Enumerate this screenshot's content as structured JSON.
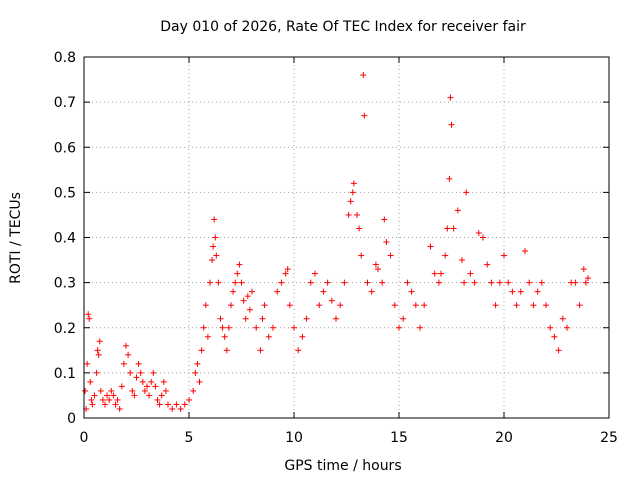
{
  "chart_data": {
    "type": "scatter",
    "title": "Day 010 of 2026, Rate Of TEC Index for receiver fair",
    "xlabel": "GPS time / hours",
    "ylabel": "ROTI / TECUs",
    "xlim": [
      0,
      25
    ],
    "ylim": [
      0,
      0.8
    ],
    "xticks": [
      "0",
      "5",
      "10",
      "15",
      "20",
      "25"
    ],
    "yticks": [
      "0",
      "0.1",
      "0.2",
      "0.3",
      "0.4",
      "0.5",
      "0.6",
      "0.7",
      "0.8"
    ],
    "grid": true,
    "marker": "+",
    "color": "#ff0000",
    "series": [
      {
        "name": "",
        "points": [
          [
            0.05,
            0.06
          ],
          [
            0.1,
            0.02
          ],
          [
            0.15,
            0.12
          ],
          [
            0.2,
            0.23
          ],
          [
            0.25,
            0.22
          ],
          [
            0.3,
            0.08
          ],
          [
            0.35,
            0.04
          ],
          [
            0.4,
            0.03
          ],
          [
            0.5,
            0.05
          ],
          [
            0.6,
            0.1
          ],
          [
            0.65,
            0.15
          ],
          [
            0.7,
            0.14
          ],
          [
            0.75,
            0.17
          ],
          [
            0.8,
            0.06
          ],
          [
            0.9,
            0.04
          ],
          [
            1.0,
            0.03
          ],
          [
            1.1,
            0.05
          ],
          [
            1.2,
            0.04
          ],
          [
            1.3,
            0.06
          ],
          [
            1.4,
            0.05
          ],
          [
            1.5,
            0.03
          ],
          [
            1.6,
            0.04
          ],
          [
            1.7,
            0.02
          ],
          [
            1.8,
            0.07
          ],
          [
            1.9,
            0.12
          ],
          [
            2.0,
            0.16
          ],
          [
            2.1,
            0.14
          ],
          [
            2.2,
            0.1
          ],
          [
            2.3,
            0.06
          ],
          [
            2.4,
            0.05
          ],
          [
            2.5,
            0.09
          ],
          [
            2.6,
            0.12
          ],
          [
            2.7,
            0.1
          ],
          [
            2.8,
            0.08
          ],
          [
            2.9,
            0.06
          ],
          [
            3.0,
            0.07
          ],
          [
            3.1,
            0.05
          ],
          [
            3.2,
            0.08
          ],
          [
            3.3,
            0.1
          ],
          [
            3.4,
            0.07
          ],
          [
            3.5,
            0.04
          ],
          [
            3.6,
            0.03
          ],
          [
            3.7,
            0.05
          ],
          [
            3.8,
            0.08
          ],
          [
            3.9,
            0.06
          ],
          [
            4.0,
            0.03
          ],
          [
            4.2,
            0.02
          ],
          [
            4.4,
            0.03
          ],
          [
            4.6,
            0.02
          ],
          [
            4.8,
            0.03
          ],
          [
            5.0,
            0.04
          ],
          [
            5.2,
            0.06
          ],
          [
            5.3,
            0.1
          ],
          [
            5.4,
            0.12
          ],
          [
            5.5,
            0.08
          ],
          [
            5.6,
            0.15
          ],
          [
            5.7,
            0.2
          ],
          [
            5.8,
            0.25
          ],
          [
            5.9,
            0.18
          ],
          [
            6.0,
            0.3
          ],
          [
            6.1,
            0.35
          ],
          [
            6.15,
            0.38
          ],
          [
            6.2,
            0.44
          ],
          [
            6.25,
            0.4
          ],
          [
            6.3,
            0.36
          ],
          [
            6.4,
            0.3
          ],
          [
            6.5,
            0.22
          ],
          [
            6.6,
            0.2
          ],
          [
            6.7,
            0.18
          ],
          [
            6.8,
            0.15
          ],
          [
            6.9,
            0.2
          ],
          [
            7.0,
            0.25
          ],
          [
            7.1,
            0.28
          ],
          [
            7.2,
            0.3
          ],
          [
            7.3,
            0.32
          ],
          [
            7.4,
            0.34
          ],
          [
            7.5,
            0.3
          ],
          [
            7.6,
            0.26
          ],
          [
            7.7,
            0.22
          ],
          [
            7.8,
            0.27
          ],
          [
            7.9,
            0.24
          ],
          [
            8.0,
            0.28
          ],
          [
            8.2,
            0.2
          ],
          [
            8.4,
            0.15
          ],
          [
            8.5,
            0.22
          ],
          [
            8.6,
            0.25
          ],
          [
            8.8,
            0.18
          ],
          [
            9.0,
            0.2
          ],
          [
            9.2,
            0.28
          ],
          [
            9.4,
            0.3
          ],
          [
            9.6,
            0.32
          ],
          [
            9.7,
            0.33
          ],
          [
            9.8,
            0.25
          ],
          [
            10.0,
            0.2
          ],
          [
            10.2,
            0.15
          ],
          [
            10.4,
            0.18
          ],
          [
            10.6,
            0.22
          ],
          [
            10.8,
            0.3
          ],
          [
            11.0,
            0.32
          ],
          [
            11.2,
            0.25
          ],
          [
            11.4,
            0.28
          ],
          [
            11.6,
            0.3
          ],
          [
            11.8,
            0.26
          ],
          [
            12.0,
            0.22
          ],
          [
            12.2,
            0.25
          ],
          [
            12.4,
            0.3
          ],
          [
            12.6,
            0.45
          ],
          [
            12.7,
            0.48
          ],
          [
            12.8,
            0.5
          ],
          [
            12.85,
            0.52
          ],
          [
            13.0,
            0.45
          ],
          [
            13.1,
            0.42
          ],
          [
            13.2,
            0.36
          ],
          [
            13.3,
            0.76
          ],
          [
            13.35,
            0.67
          ],
          [
            13.5,
            0.3
          ],
          [
            13.7,
            0.28
          ],
          [
            13.9,
            0.34
          ],
          [
            14.0,
            0.33
          ],
          [
            14.2,
            0.3
          ],
          [
            14.3,
            0.44
          ],
          [
            14.4,
            0.39
          ],
          [
            14.6,
            0.36
          ],
          [
            14.8,
            0.25
          ],
          [
            15.0,
            0.2
          ],
          [
            15.2,
            0.22
          ],
          [
            15.4,
            0.3
          ],
          [
            15.6,
            0.28
          ],
          [
            15.8,
            0.25
          ],
          [
            16.0,
            0.2
          ],
          [
            16.2,
            0.25
          ],
          [
            16.5,
            0.38
          ],
          [
            16.7,
            0.32
          ],
          [
            16.9,
            0.3
          ],
          [
            17.0,
            0.32
          ],
          [
            17.2,
            0.36
          ],
          [
            17.3,
            0.42
          ],
          [
            17.4,
            0.53
          ],
          [
            17.45,
            0.71
          ],
          [
            17.5,
            0.65
          ],
          [
            17.6,
            0.42
          ],
          [
            17.8,
            0.46
          ],
          [
            18.0,
            0.35
          ],
          [
            18.1,
            0.3
          ],
          [
            18.2,
            0.5
          ],
          [
            18.4,
            0.32
          ],
          [
            18.6,
            0.3
          ],
          [
            18.8,
            0.41
          ],
          [
            19.0,
            0.4
          ],
          [
            19.2,
            0.34
          ],
          [
            19.4,
            0.3
          ],
          [
            19.6,
            0.25
          ],
          [
            19.8,
            0.3
          ],
          [
            20.0,
            0.36
          ],
          [
            20.2,
            0.3
          ],
          [
            20.4,
            0.28
          ],
          [
            20.6,
            0.25
          ],
          [
            20.8,
            0.28
          ],
          [
            21.0,
            0.37
          ],
          [
            21.2,
            0.3
          ],
          [
            21.4,
            0.25
          ],
          [
            21.6,
            0.28
          ],
          [
            21.8,
            0.3
          ],
          [
            22.0,
            0.25
          ],
          [
            22.2,
            0.2
          ],
          [
            22.4,
            0.18
          ],
          [
            22.6,
            0.15
          ],
          [
            22.8,
            0.22
          ],
          [
            23.0,
            0.2
          ],
          [
            23.2,
            0.3
          ],
          [
            23.4,
            0.3
          ],
          [
            23.6,
            0.25
          ],
          [
            23.8,
            0.33
          ],
          [
            23.9,
            0.3
          ],
          [
            24.0,
            0.31
          ]
        ]
      }
    ]
  }
}
